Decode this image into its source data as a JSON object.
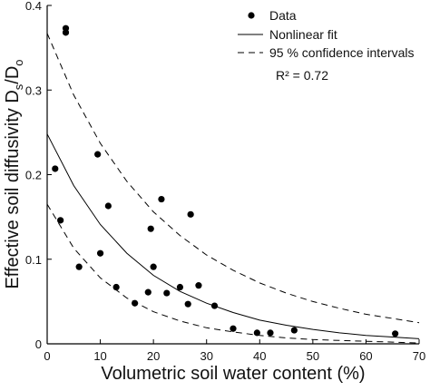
{
  "chart_data": {
    "type": "scatter",
    "xlabel": "Volumetric soil water content (%)",
    "ylabel": {
      "main": "Effective soil diffusivity D",
      "sub1": "s",
      "mid": "/D",
      "sub2": "o"
    },
    "xlim": [
      0,
      70
    ],
    "ylim": [
      0,
      0.4
    ],
    "xticks": [
      "0",
      "10",
      "20",
      "30",
      "40",
      "50",
      "60",
      "70"
    ],
    "yticks": [
      "0",
      "0.1",
      "0.2",
      "0.3",
      "0.4"
    ],
    "grid": false,
    "legend": {
      "placement": "top-right",
      "entries": [
        {
          "label": "Data",
          "marker": "dot"
        },
        {
          "label": "Nonlinear fit",
          "marker": "solid"
        },
        {
          "label": "95 % confidence intervals",
          "marker": "dashed"
        }
      ],
      "r2": "R² = 0.72"
    },
    "series": [
      {
        "name": "Data",
        "kind": "points",
        "x": [
          1.5,
          2.5,
          3.5,
          3.5,
          6,
          9.5,
          10,
          11.5,
          13,
          16.5,
          19,
          19.5,
          20,
          21.5,
          22.5,
          25,
          26.5,
          27,
          28.5,
          31.5,
          35,
          39.5,
          42,
          46.5,
          65.5
        ],
        "y": [
          0.207,
          0.146,
          0.373,
          0.368,
          0.091,
          0.224,
          0.107,
          0.163,
          0.067,
          0.048,
          0.061,
          0.136,
          0.091,
          0.171,
          0.06,
          0.067,
          0.047,
          0.153,
          0.069,
          0.045,
          0.018,
          0.013,
          0.013,
          0.016,
          0.012
        ]
      },
      {
        "name": "Nonlinear fit",
        "kind": "curve",
        "style": "solid",
        "x": [
          0,
          5,
          10,
          15,
          20,
          25,
          30,
          35,
          40,
          45,
          50,
          55,
          60,
          65,
          70
        ],
        "y": [
          0.248,
          0.187,
          0.141,
          0.107,
          0.081,
          0.062,
          0.048,
          0.037,
          0.028,
          0.022,
          0.017,
          0.013,
          0.01,
          0.008,
          0.006
        ]
      },
      {
        "name": "95 % confidence intervals (upper)",
        "kind": "curve",
        "style": "dashed",
        "x": [
          0,
          5,
          10,
          15,
          20,
          25,
          30,
          35,
          40,
          45,
          50,
          55,
          60,
          65,
          70
        ],
        "y": [
          0.367,
          0.294,
          0.237,
          0.192,
          0.156,
          0.128,
          0.105,
          0.087,
          0.072,
          0.06,
          0.05,
          0.042,
          0.035,
          0.03,
          0.025
        ]
      },
      {
        "name": "95 % confidence intervals (lower)",
        "kind": "curve",
        "style": "dashed",
        "x": [
          0,
          5,
          10,
          15,
          20,
          25,
          30,
          35,
          40,
          45,
          50,
          55,
          60,
          65,
          70
        ],
        "y": [
          0.165,
          0.113,
          0.078,
          0.054,
          0.038,
          0.027,
          0.019,
          0.014,
          0.01,
          0.007,
          0.005,
          0.004,
          0.003,
          0.002,
          0.001
        ]
      }
    ]
  }
}
